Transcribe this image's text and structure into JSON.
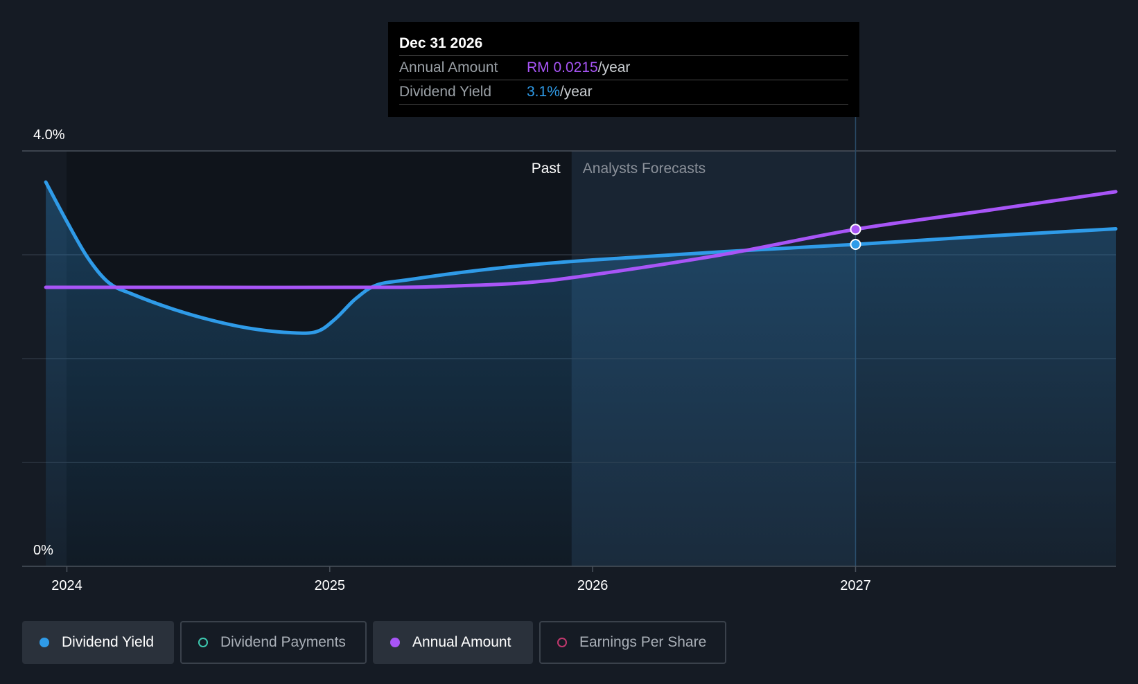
{
  "chart_data": {
    "type": "line",
    "y_axis": {
      "top_label": "4.0%",
      "bottom_label": "0%",
      "ylim": [
        0,
        4.0
      ],
      "unit": "%"
    },
    "x_axis": {
      "ticks": [
        "2024",
        "2025",
        "2026",
        "2027"
      ],
      "xlim": [
        2023.83,
        2027.99
      ]
    },
    "regions": {
      "past_label": "Past",
      "forecast_label": "Analysts Forecasts",
      "past_end": 2025.92,
      "highlight_end": 2027.0
    },
    "series": [
      {
        "name": "Dividend Yield",
        "color": "#2f9be8",
        "unit": "%",
        "points": [
          [
            2023.92,
            3.7
          ],
          [
            2024.0,
            3.32
          ],
          [
            2024.08,
            2.97
          ],
          [
            2024.16,
            2.73
          ],
          [
            2024.25,
            2.62
          ],
          [
            2024.4,
            2.48
          ],
          [
            2024.55,
            2.37
          ],
          [
            2024.7,
            2.29
          ],
          [
            2024.85,
            2.25
          ],
          [
            2024.95,
            2.26
          ],
          [
            2025.02,
            2.38
          ],
          [
            2025.1,
            2.58
          ],
          [
            2025.18,
            2.71
          ],
          [
            2025.3,
            2.76
          ],
          [
            2025.5,
            2.83
          ],
          [
            2025.75,
            2.9
          ],
          [
            2026.0,
            2.95
          ],
          [
            2026.5,
            3.03
          ],
          [
            2027.0,
            3.1
          ],
          [
            2027.5,
            3.18
          ],
          [
            2027.99,
            3.25
          ]
        ]
      },
      {
        "name": "Annual Amount",
        "color": "#a855f7",
        "unit": "RM",
        "points": [
          [
            2023.92,
            0.0178
          ],
          [
            2024.5,
            0.0178
          ],
          [
            2025.25,
            0.0178
          ],
          [
            2025.5,
            0.0179
          ],
          [
            2025.75,
            0.0181
          ],
          [
            2026.0,
            0.0186
          ],
          [
            2026.5,
            0.0199
          ],
          [
            2027.0,
            0.0215
          ],
          [
            2027.5,
            0.0227
          ],
          [
            2027.99,
            0.0239
          ]
        ],
        "scale_note": "plotted on independent axis"
      }
    ],
    "highlight": {
      "x": 2027.0,
      "date": "Dec 31 2026"
    }
  },
  "tooltip": {
    "date": "Dec 31 2026",
    "rows": [
      {
        "label": "Annual Amount",
        "value": "RM 0.0215",
        "unit": "/year",
        "color": "#a855f7"
      },
      {
        "label": "Dividend Yield",
        "value": "3.1%",
        "unit": "/year",
        "color": "#2f9be8"
      }
    ]
  },
  "legend": [
    {
      "label": "Dividend Yield",
      "color": "#2f9be8",
      "active": true,
      "filled": true
    },
    {
      "label": "Dividend Payments",
      "color": "#3dc9b0",
      "active": false,
      "filled": false
    },
    {
      "label": "Annual Amount",
      "color": "#a855f7",
      "active": true,
      "filled": true
    },
    {
      "label": "Earnings Per Share",
      "color": "#c2386e",
      "active": false,
      "filled": false
    }
  ],
  "colors": {
    "background": "#151b24",
    "grid": "#2d3540",
    "past_region": "#0f141b",
    "forecast_region": "#1a2735"
  }
}
